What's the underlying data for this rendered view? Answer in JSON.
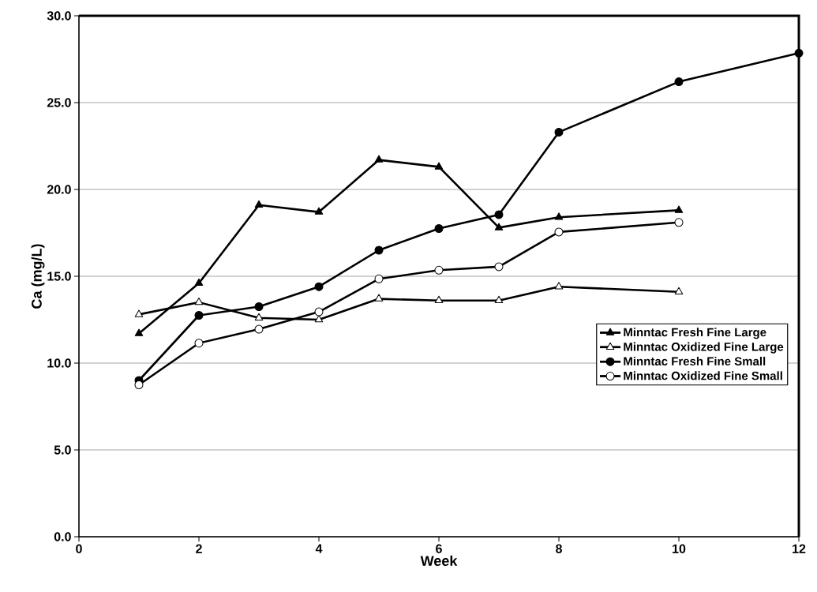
{
  "chart_data": {
    "type": "line",
    "xlabel": "Week",
    "ylabel": "Ca (mg/L)",
    "xlim": [
      0,
      12
    ],
    "xticks": [
      0,
      2,
      4,
      6,
      8,
      10,
      12
    ],
    "ylim": [
      0,
      30
    ],
    "yticks": [
      {
        "value": 0,
        "label": "0.0"
      },
      {
        "value": 5,
        "label": "5.0"
      },
      {
        "value": 10,
        "label": "10.0"
      },
      {
        "value": 15,
        "label": "15.0"
      },
      {
        "value": 20,
        "label": "20.0"
      },
      {
        "value": 25,
        "label": "25.0"
      },
      {
        "value": 30,
        "label": "30.0"
      }
    ],
    "grid": "y",
    "legend": "right",
    "line_style": "solid",
    "series": [
      {
        "name": "Minntac Fresh Fine Large",
        "color": "#000000",
        "marker": "triangle",
        "x": [
          1,
          2,
          3,
          4,
          5,
          6,
          7,
          8,
          10
        ],
        "values": [
          11.7,
          14.6,
          19.1,
          18.7,
          21.7,
          21.3,
          17.8,
          18.4,
          18.8
        ]
      },
      {
        "name": "Minntac Oxidized Fine Large",
        "color": "#000000",
        "marker": "triangle",
        "x": [
          1,
          2,
          3,
          4,
          5,
          6,
          7,
          8,
          10
        ],
        "values": [
          12.8,
          13.5,
          12.6,
          12.5,
          13.7,
          13.6,
          13.6,
          14.4,
          14.1
        ]
      },
      {
        "name": "Minntac Fresh Fine Small",
        "color": "#000000",
        "marker": "circle",
        "x": [
          1,
          2,
          3,
          4,
          5,
          6,
          7,
          8,
          10,
          12
        ],
        "values": [
          9.0,
          12.75,
          13.25,
          14.4,
          16.5,
          17.75,
          18.55,
          23.3,
          26.2,
          27.85
        ]
      },
      {
        "name": "Minntac Oxidized Fine Small",
        "color": "#000000",
        "marker": "circle",
        "x": [
          1,
          2,
          3,
          4,
          5,
          6,
          7,
          8,
          10
        ],
        "values": [
          8.75,
          11.15,
          11.95,
          12.95,
          14.85,
          15.35,
          15.55,
          17.55,
          18.1
        ]
      }
    ]
  }
}
